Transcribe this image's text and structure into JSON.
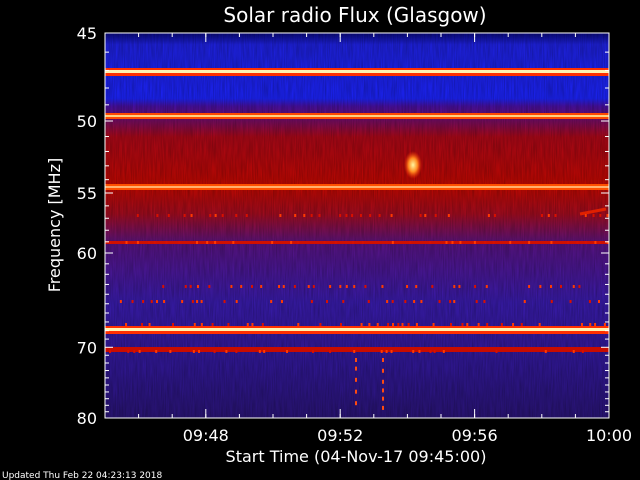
{
  "chart_data": {
    "type": "heatmap",
    "title": "Solar radio Flux (Glasgow)",
    "xlabel": "Start Time (04-Nov-17 09:45:00)",
    "ylabel": "Frequency [MHz]",
    "x_range": [
      "09:45",
      "10:00"
    ],
    "x_ticks": [
      "09:48",
      "09:52",
      "09:56",
      "10:00"
    ],
    "y_range": [
      45,
      80
    ],
    "y_ticks": [
      45,
      50,
      55,
      60,
      70,
      80
    ],
    "y_scale": "reciprocal",
    "grid": false,
    "colors": {
      "low": "#000050",
      "mid": "#1c24ff",
      "high": "#c80800",
      "peak": "#ffee80"
    }
  },
  "footer": {
    "updated_label": "Updated Thu Feb 22 04:23:13 2018"
  }
}
